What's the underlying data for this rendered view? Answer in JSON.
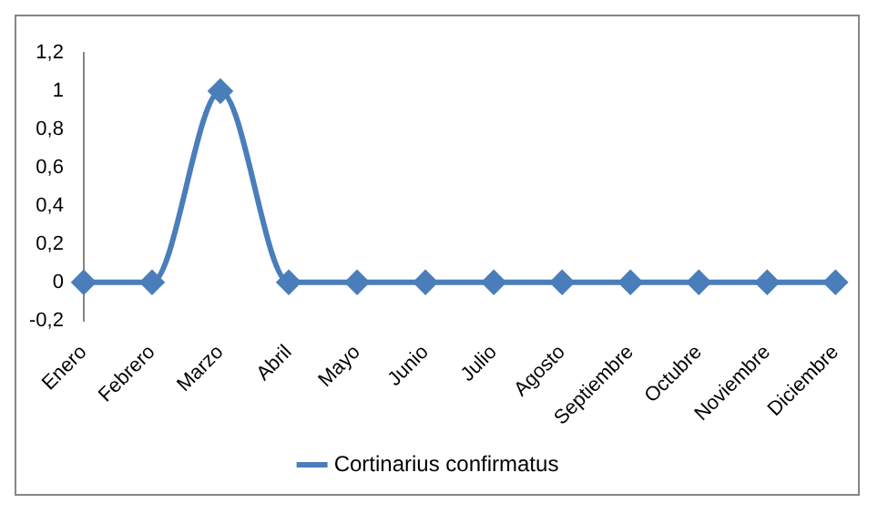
{
  "chart_data": {
    "type": "line",
    "categories": [
      "Enero",
      "Febrero",
      "Marzo",
      "Abril",
      "Mayo",
      "Junio",
      "Julio",
      "Agosto",
      "Septiembre",
      "Octubre",
      "Noviembre",
      "Diciembre"
    ],
    "series": [
      {
        "name": "Cortinarius confirmatus",
        "color": "#4a7ebb",
        "values": [
          0,
          0,
          1,
          0,
          0,
          0,
          0,
          0,
          0,
          0,
          0,
          0
        ]
      }
    ],
    "ylim": [
      -0.2,
      1.2
    ],
    "yticks": [
      {
        "value": -0.2,
        "label": "-0,2"
      },
      {
        "value": 0,
        "label": "0"
      },
      {
        "value": 0.2,
        "label": "0,2"
      },
      {
        "value": 0.4,
        "label": "0,4"
      },
      {
        "value": 0.6,
        "label": "0,6"
      },
      {
        "value": 0.8,
        "label": "0,8"
      },
      {
        "value": 1,
        "label": "1"
      },
      {
        "value": 1.2,
        "label": "1,2"
      }
    ],
    "grid": false,
    "legend": "bottom",
    "marker": "diamond",
    "line_style": "solid"
  }
}
